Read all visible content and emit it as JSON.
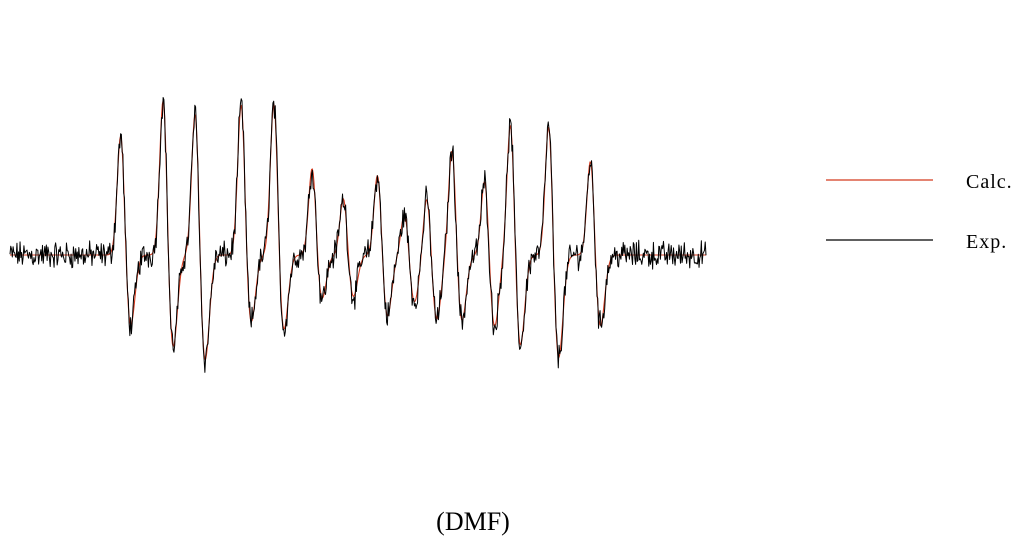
{
  "chart_data": {
    "type": "line",
    "title": "",
    "caption": "(DMF)",
    "xlabel": "",
    "ylabel": "",
    "x_range": [
      0,
      1
    ],
    "y_range": [
      -1,
      1
    ],
    "axes_visible": false,
    "grid": false,
    "legend_position": "right",
    "legend": [
      {
        "label": "Calc.",
        "color": "#d43a1e"
      },
      {
        "label": "Exp.",
        "color": "#000000"
      }
    ],
    "peaks": [
      {
        "x": 0.165,
        "pos": 0.5,
        "neg": -0.29,
        "w": 0.0055
      },
      {
        "x": 0.226,
        "pos": 0.65,
        "neg": -0.38,
        "w": 0.0055
      },
      {
        "x": 0.272,
        "pos": 0.6,
        "neg": -0.43,
        "w": 0.0055
      },
      {
        "x": 0.338,
        "pos": 0.62,
        "neg": -0.28,
        "w": 0.0055
      },
      {
        "x": 0.385,
        "pos": 0.63,
        "neg": -0.31,
        "w": 0.0055
      },
      {
        "x": 0.44,
        "pos": 0.36,
        "neg": -0.18,
        "w": 0.0055
      },
      {
        "x": 0.485,
        "pos": 0.24,
        "neg": -0.17,
        "w": 0.0055
      },
      {
        "x": 0.534,
        "pos": 0.34,
        "neg": -0.25,
        "w": 0.0055
      },
      {
        "x": 0.573,
        "pos": 0.18,
        "neg": -0.19,
        "w": 0.0055
      },
      {
        "x": 0.605,
        "pos": 0.25,
        "neg": -0.26,
        "w": 0.0055
      },
      {
        "x": 0.641,
        "pos": 0.44,
        "neg": -0.27,
        "w": 0.0055
      },
      {
        "x": 0.688,
        "pos": 0.32,
        "neg": -0.29,
        "w": 0.0055
      },
      {
        "x": 0.725,
        "pos": 0.55,
        "neg": -0.37,
        "w": 0.0055
      },
      {
        "x": 0.78,
        "pos": 0.55,
        "neg": -0.42,
        "w": 0.0055
      },
      {
        "x": 0.84,
        "pos": 0.4,
        "neg": -0.29,
        "w": 0.0055
      }
    ],
    "series": [
      {
        "name": "Calc.",
        "color": "#d43a1e",
        "noise": 0.0
      },
      {
        "name": "Exp.",
        "color": "#000000",
        "noise": 0.08
      }
    ]
  }
}
